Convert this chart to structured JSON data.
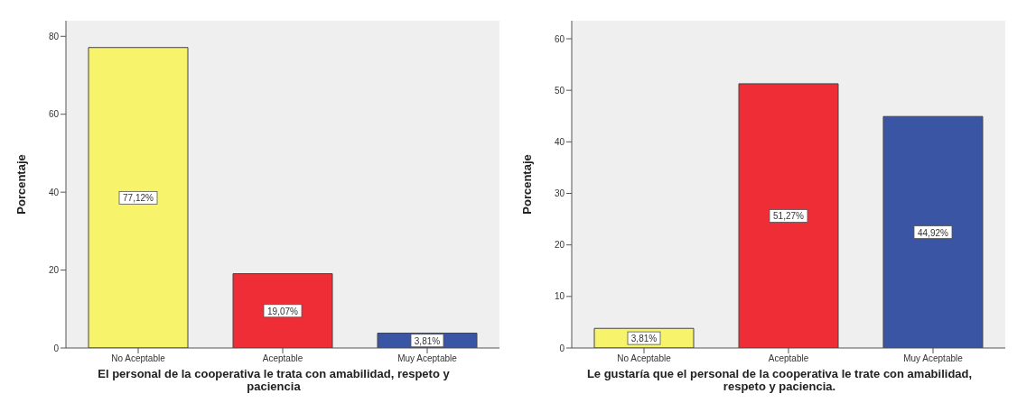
{
  "chart_data": [
    {
      "type": "bar",
      "xlabel": "El personal de la cooperativa le trata con amabilidad, respeto y paciencia",
      "ylabel": "Porcentaje",
      "categories": [
        "No Aceptable",
        "Aceptable",
        "Muy Aceptable"
      ],
      "values": [
        77.12,
        19.07,
        3.81
      ],
      "value_labels": [
        "77,12%",
        "19,07%",
        "3,81%"
      ],
      "colors": [
        "#f7f36a",
        "#ee2d36",
        "#3a55a4"
      ],
      "ylim": [
        0,
        84
      ],
      "yticks": [
        0,
        20,
        40,
        60,
        80
      ]
    },
    {
      "type": "bar",
      "xlabel": "Le gustaría que el personal de la cooperativa le trate con amabilidad, respeto y paciencia.",
      "ylabel": "Porcentaje",
      "categories": [
        "No Aceptable",
        "Aceptable",
        "Muy Aceptable"
      ],
      "values": [
        3.81,
        51.27,
        44.92
      ],
      "value_labels": [
        "3,81%",
        "51,27%",
        "44,92%"
      ],
      "colors": [
        "#f7f36a",
        "#ee2d36",
        "#3a55a4"
      ],
      "ylim": [
        0,
        63.5
      ],
      "yticks": [
        0,
        10,
        20,
        30,
        40,
        50,
        60
      ]
    }
  ]
}
